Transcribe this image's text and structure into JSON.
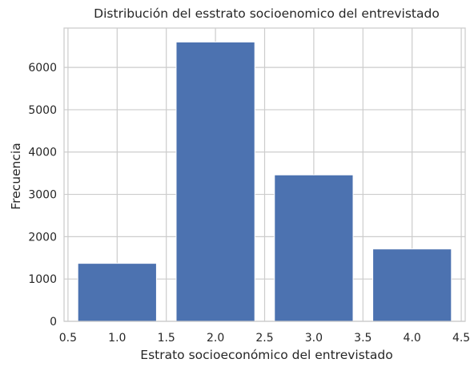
{
  "chart_data": {
    "type": "bar",
    "title": "Distribución del esstrato socioenomico del entrevistado",
    "xlabel": "Estrato socioeconómico del entrevistado",
    "ylabel": "Frecuencia",
    "x": [
      1.0,
      2.0,
      3.0,
      4.0
    ],
    "values": [
      1370,
      6600,
      3460,
      1710
    ],
    "bar_width": 0.8,
    "xlim": [
      0.46,
      4.54
    ],
    "ylim": [
      0,
      6930
    ],
    "xticks": [
      0.5,
      1.0,
      1.5,
      2.0,
      2.5,
      3.0,
      3.5,
      4.0,
      4.5
    ],
    "xtick_labels": [
      "0.5",
      "1.0",
      "1.5",
      "2.0",
      "2.5",
      "3.0",
      "3.5",
      "4.0",
      "4.5"
    ],
    "yticks": [
      0,
      1000,
      2000,
      3000,
      4000,
      5000,
      6000
    ],
    "ytick_labels": [
      "0",
      "1000",
      "2000",
      "3000",
      "4000",
      "5000",
      "6000"
    ],
    "grid": true,
    "colors": {
      "bar": "#4c72b0",
      "bar_edge": "#ffffff",
      "grid": "#cccccc",
      "spine": "#cccccc",
      "text": "#262626",
      "background": "#ffffff"
    }
  }
}
